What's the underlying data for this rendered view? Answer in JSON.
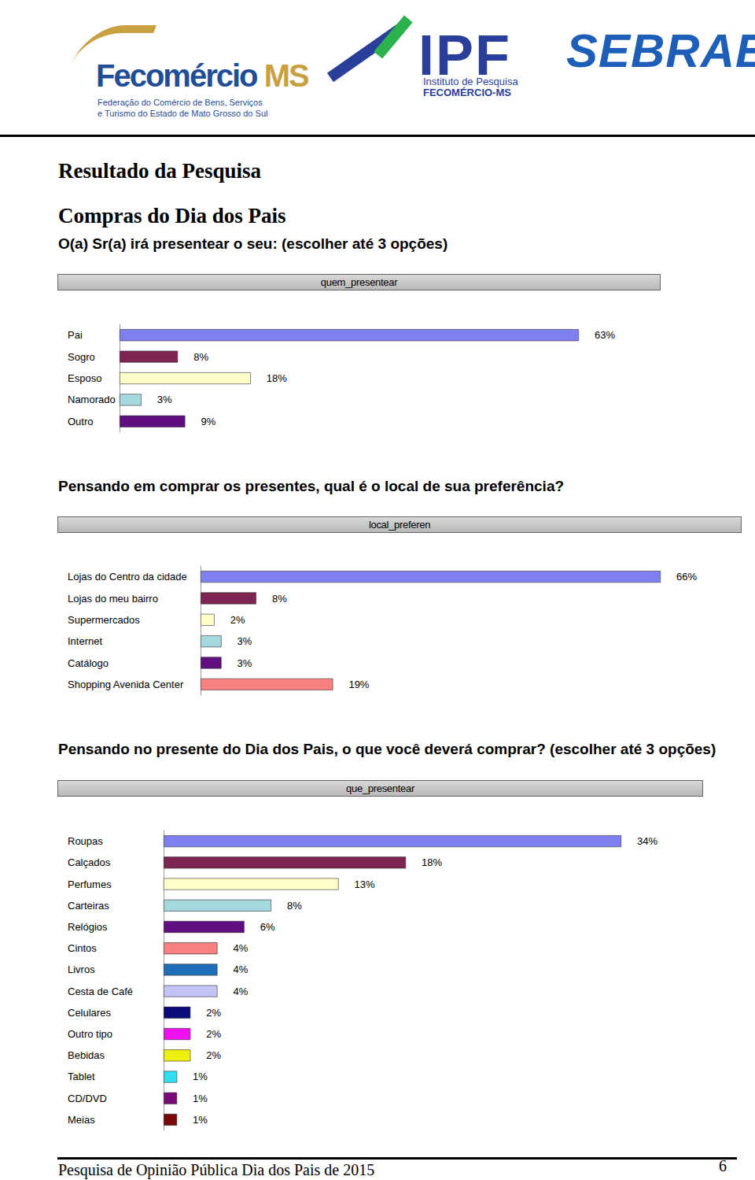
{
  "header": {
    "fecomercio": {
      "name": "Fecomércio",
      "suffix": "MS",
      "subtitle": [
        "Federação do Comércio de Bens, Serviços",
        "e Turismo do Estado de Mato Grosso do Sul"
      ]
    },
    "ipf": {
      "name": "IPF",
      "subtitle": [
        "Instituto de Pesquisa",
        "FECOMÉRCIO-MS"
      ]
    },
    "sebrae": {
      "name": "SEBRAE"
    }
  },
  "title": "Resultado da Pesquisa",
  "subtitle": "Compras do Dia dos Pais",
  "chart_data": [
    {
      "type": "bar",
      "question": "O(a) Sr(a) irá presentear o seu: (escolher até 3 opções)",
      "title": "quem_presentear",
      "orientation": "horizontal",
      "categories": [
        "Pai",
        "Sogro",
        "Esposo",
        "Namorado",
        "Outro"
      ],
      "values": [
        63,
        8,
        18,
        3,
        9
      ],
      "value_labels": [
        "63%",
        "8%",
        "18%",
        "3%",
        "9%"
      ],
      "colors": [
        "#7f7fef",
        "#7f2552",
        "#ffffcc",
        "#a6d8e0",
        "#5f0f7f"
      ],
      "xlim": [
        0,
        63
      ],
      "data_labels": true,
      "tick_labels": "y",
      "grid": false
    },
    {
      "type": "bar",
      "question": "Pensando em comprar os presentes, qual é o local de sua preferência?",
      "title": "local_preferen",
      "orientation": "horizontal",
      "categories": [
        "Lojas do Centro da cidade",
        "Lojas do meu bairro",
        "Supermercados",
        "Internet",
        "Catálogo",
        "Shopping Avenida Center"
      ],
      "values": [
        66,
        8,
        2,
        3,
        3,
        19
      ],
      "value_labels": [
        "66%",
        "8%",
        "2%",
        "3%",
        "3%",
        "19%"
      ],
      "colors": [
        "#7f7fef",
        "#7f2552",
        "#ffffcc",
        "#a6d8e0",
        "#5f0f7f",
        "#f78080"
      ],
      "xlim": [
        0,
        66
      ],
      "data_labels": true,
      "tick_labels": "y",
      "grid": false
    },
    {
      "type": "bar",
      "question": "Pensando no presente do Dia dos Pais, o que você deverá comprar? (escolher até 3 opções)",
      "title": "que_presentear",
      "orientation": "horizontal",
      "categories": [
        "Roupas",
        "Calçados",
        "Perfumes",
        "Carteiras",
        "Relógios",
        "Cintos",
        "Livros",
        "Cesta de Café",
        "Celulares",
        "Outro tipo",
        "Bebidas",
        "Tablet",
        "CD/DVD",
        "Meias"
      ],
      "values": [
        34,
        18,
        13,
        8,
        6,
        4,
        4,
        4,
        2,
        2,
        2,
        1,
        1,
        1
      ],
      "value_labels": [
        "34%",
        "18%",
        "13%",
        "8%",
        "6%",
        "4%",
        "4%",
        "4%",
        "2%",
        "2%",
        "2%",
        "1%",
        "1%",
        "1%"
      ],
      "colors": [
        "#7f7fef",
        "#7f2552",
        "#ffffcc",
        "#a6d8e0",
        "#5f0f7f",
        "#f78080",
        "#1c6fb8",
        "#c4c4f4",
        "#0a0a7a",
        "#ef10ef",
        "#efef10",
        "#30e0f0",
        "#7a0a7a",
        "#7a0a0a"
      ],
      "xlim": [
        0,
        34
      ],
      "data_labels": true,
      "tick_labels": "y",
      "grid": false
    }
  ],
  "footer": {
    "text": "Pesquisa de Opinião Pública Dia dos Pais de 2015",
    "page": 6
  }
}
